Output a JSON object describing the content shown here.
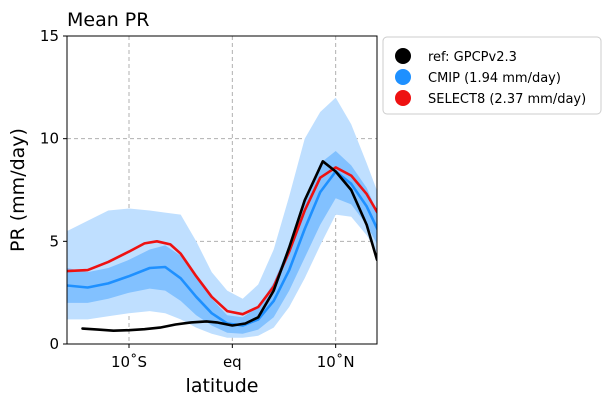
{
  "chart_data": {
    "type": "line",
    "title": "Mean PR",
    "xlabel": "latitude",
    "ylabel": "PR (mm/day)",
    "xlim": [
      -16,
      14
    ],
    "ylim": [
      0,
      15
    ],
    "xticks": [
      {
        "value": -10,
        "label": "10˚S"
      },
      {
        "value": 0,
        "label": "eq"
      },
      {
        "value": 10,
        "label": "10˚N"
      }
    ],
    "yticks": [
      {
        "value": 0,
        "label": "0"
      },
      {
        "value": 5,
        "label": "5"
      },
      {
        "value": 10,
        "label": "10"
      },
      {
        "value": 15,
        "label": "15"
      }
    ],
    "grid": true,
    "legend_position": "outside-right",
    "colors": {
      "ref": "#000000",
      "cmip": "#1e90ff",
      "select8": "#ee1111",
      "band_outer": "#bfdfff",
      "band_inner": "#82c1ff"
    },
    "series": [
      {
        "name": "ref: GPCPv2.3",
        "key": "ref",
        "x": [
          -14.5,
          -13,
          -11.5,
          -10,
          -8.5,
          -7,
          -5.5,
          -4,
          -2.5,
          -1.5,
          0,
          1.25,
          2.5,
          4,
          5.5,
          7,
          8.75,
          10,
          11.5,
          13,
          14
        ],
        "y": [
          0.75,
          0.7,
          0.65,
          0.67,
          0.72,
          0.8,
          0.95,
          1.05,
          1.1,
          1.05,
          0.9,
          1.0,
          1.3,
          2.6,
          4.7,
          7.0,
          8.9,
          8.4,
          7.5,
          5.8,
          4.1
        ]
      },
      {
        "name": "CMIP (1.94 mm/day)",
        "key": "cmip",
        "x": [
          -16,
          -14,
          -12,
          -10,
          -8,
          -6.5,
          -5,
          -3.5,
          -2,
          -0.5,
          1,
          2.5,
          4,
          5.5,
          7,
          8.5,
          10,
          11.5,
          13,
          14.5,
          16
        ],
        "y": [
          2.85,
          2.75,
          2.95,
          3.3,
          3.7,
          3.75,
          3.2,
          2.3,
          1.5,
          1.0,
          0.9,
          1.2,
          2.1,
          3.6,
          5.6,
          7.4,
          8.4,
          7.8,
          6.7,
          5.1,
          3.8
        ],
        "band_inner_low": [
          2.0,
          2.0,
          2.2,
          2.5,
          2.7,
          2.6,
          2.1,
          1.4,
          0.9,
          0.55,
          0.5,
          0.7,
          1.3,
          2.6,
          4.2,
          5.8,
          7.1,
          6.8,
          5.8,
          4.4,
          3.3
        ],
        "band_inner_high": [
          3.7,
          3.5,
          3.7,
          4.1,
          4.6,
          4.8,
          4.3,
          3.3,
          2.2,
          1.4,
          1.3,
          1.8,
          3.0,
          4.8,
          7.0,
          8.8,
          9.4,
          8.7,
          7.6,
          5.9,
          4.3
        ],
        "band_outer_low": [
          1.2,
          1.2,
          1.35,
          1.5,
          1.6,
          1.5,
          1.2,
          0.8,
          0.5,
          0.3,
          0.3,
          0.4,
          0.8,
          1.8,
          3.2,
          4.8,
          6.3,
          6.2,
          5.3,
          4.0,
          2.9
        ],
        "band_outer_high": [
          5.5,
          6.0,
          6.5,
          6.6,
          6.5,
          6.4,
          6.3,
          5.0,
          3.5,
          2.6,
          2.2,
          2.9,
          4.6,
          7.2,
          10.0,
          11.3,
          12.0,
          10.7,
          8.8,
          6.8,
          4.7
        ]
      },
      {
        "name": "SELECT8 (2.37 mm/day)",
        "key": "select8",
        "x": [
          -16,
          -14,
          -12,
          -10,
          -8.5,
          -7.3,
          -6,
          -5,
          -3.5,
          -2,
          -0.5,
          1,
          2.5,
          4,
          5.5,
          7,
          8.5,
          10,
          11.5,
          13,
          14.5,
          16
        ],
        "y": [
          3.55,
          3.6,
          4.0,
          4.5,
          4.9,
          5.0,
          4.85,
          4.4,
          3.3,
          2.3,
          1.6,
          1.45,
          1.8,
          2.8,
          4.5,
          6.5,
          8.1,
          8.6,
          8.2,
          7.3,
          6.0,
          4.6
        ]
      }
    ]
  }
}
